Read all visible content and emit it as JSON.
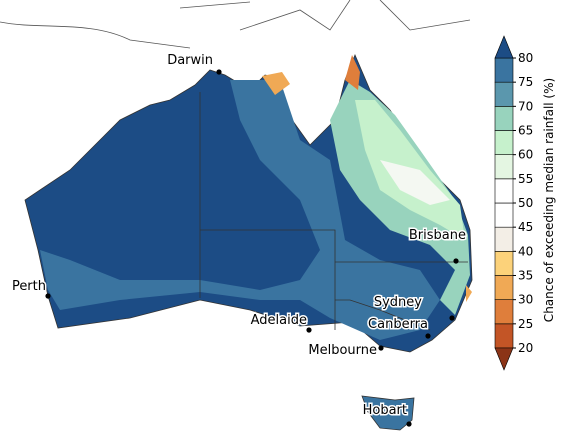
{
  "map": {
    "cities": [
      {
        "name": "Darwin"
      },
      {
        "name": "Brisbane"
      },
      {
        "name": "Perth"
      },
      {
        "name": "Sydney"
      },
      {
        "name": "Adelaide"
      },
      {
        "name": "Canberra"
      },
      {
        "name": "Melbourne"
      },
      {
        "name": "Hobart"
      }
    ]
  },
  "colorbar": {
    "label": "Chance of exceeding median rainfall (%)",
    "ticks": [
      20,
      25,
      30,
      35,
      40,
      45,
      50,
      55,
      60,
      65,
      70,
      75,
      80
    ],
    "colors": [
      "#c35526",
      "#df7e3b",
      "#f0a955",
      "#fcd27a",
      "#f3eee6",
      "#ffffff",
      "#ffffff",
      "#e4f6e2",
      "#c6f1cc",
      "#98d3bd",
      "#5b97ad",
      "#3a74a0"
    ],
    "under_color": "#8b3417",
    "over_color": "#1c4c85"
  }
}
